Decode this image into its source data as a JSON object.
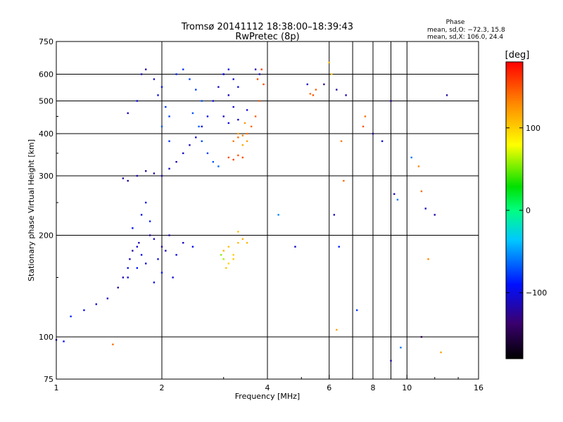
{
  "chart_data": {
    "type": "scatter",
    "title": "Tromsø 20141112 18:38:00–18:39:43",
    "subtitle": "RwPretec (8p)",
    "phase_info": {
      "heading": "Phase",
      "line_o": "mean, sd,O: −72.3, 15.8",
      "line_x": "mean, sd,X: 106.0, 24.4"
    },
    "xlabel": "Frequency [MHz]",
    "ylabel": "Stationary phase Virtual Height [km]",
    "x_scale": "log",
    "y_scale": "log",
    "xlim": [
      1,
      16
    ],
    "ylim": [
      75,
      750
    ],
    "x_ticks": [
      1,
      2,
      4,
      6,
      8,
      10,
      16
    ],
    "y_ticks": [
      75,
      100,
      200,
      300,
      400,
      500,
      600,
      750
    ],
    "grid": true,
    "gridlines_x": [
      2,
      4,
      6,
      7,
      8,
      9,
      10
    ],
    "gridlines_y": [
      100,
      200,
      300,
      400,
      500,
      600
    ],
    "colorbar": {
      "label": "[deg]",
      "range": [
        -180,
        180
      ],
      "ticks": [
        100,
        0,
        -100
      ]
    },
    "series": [
      {
        "points": [
          [
            1.0,
            98,
            -110
          ],
          [
            1.05,
            97,
            -90
          ],
          [
            1.1,
            115,
            -85
          ],
          [
            1.2,
            120,
            -95
          ],
          [
            1.3,
            125,
            -105
          ],
          [
            1.4,
            130,
            -110
          ],
          [
            1.45,
            95,
            140
          ],
          [
            1.5,
            140,
            -120
          ],
          [
            1.55,
            150,
            -115
          ],
          [
            1.6,
            160,
            -100
          ],
          [
            1.62,
            170,
            -110
          ],
          [
            1.65,
            180,
            -120
          ],
          [
            1.7,
            185,
            -105
          ],
          [
            1.72,
            190,
            -115
          ],
          [
            1.75,
            175,
            -95
          ],
          [
            1.8,
            165,
            -100
          ],
          [
            1.85,
            200,
            -120
          ],
          [
            1.9,
            195,
            -110
          ],
          [
            1.95,
            170,
            -105
          ],
          [
            2.0,
            185,
            -118
          ],
          [
            2.05,
            180,
            -112
          ],
          [
            2.1,
            200,
            -120
          ],
          [
            2.2,
            175,
            -100
          ],
          [
            2.3,
            190,
            -110
          ],
          [
            2.45,
            185,
            -95
          ],
          [
            1.65,
            210,
            -90
          ],
          [
            1.75,
            230,
            -100
          ],
          [
            1.8,
            250,
            -95
          ],
          [
            1.85,
            220,
            -85
          ],
          [
            1.7,
            160,
            -90
          ],
          [
            1.6,
            150,
            -100
          ],
          [
            1.9,
            145,
            -95
          ],
          [
            2.0,
            155,
            -90
          ],
          [
            2.15,
            150,
            -100
          ],
          [
            1.55,
            295,
            -120
          ],
          [
            1.6,
            290,
            -125
          ],
          [
            1.7,
            300,
            -118
          ],
          [
            1.8,
            310,
            -122
          ],
          [
            1.9,
            305,
            -115
          ],
          [
            2.0,
            300,
            -120
          ],
          [
            2.1,
            315,
            -110
          ],
          [
            2.2,
            330,
            -115
          ],
          [
            2.3,
            350,
            -108
          ],
          [
            2.4,
            370,
            -112
          ],
          [
            2.5,
            390,
            -105
          ],
          [
            2.6,
            420,
            -100
          ],
          [
            2.7,
            450,
            -95
          ],
          [
            2.8,
            500,
            -100
          ],
          [
            2.9,
            550,
            -110
          ],
          [
            3.0,
            600,
            -115
          ],
          [
            1.6,
            460,
            -110
          ],
          [
            1.7,
            500,
            -100
          ],
          [
            1.75,
            600,
            -110
          ],
          [
            1.8,
            620,
            -115
          ],
          [
            1.9,
            580,
            -105
          ],
          [
            2.0,
            550,
            -95
          ],
          [
            1.95,
            520,
            -100
          ],
          [
            2.05,
            480,
            -80
          ],
          [
            2.1,
            450,
            -75
          ],
          [
            2.0,
            420,
            -70
          ],
          [
            2.1,
            380,
            -80
          ],
          [
            2.2,
            600,
            -85
          ],
          [
            2.3,
            620,
            -80
          ],
          [
            2.4,
            580,
            -75
          ],
          [
            2.5,
            540,
            -78
          ],
          [
            2.6,
            500,
            -72
          ],
          [
            2.45,
            460,
            -70
          ],
          [
            2.55,
            420,
            -68
          ],
          [
            2.6,
            380,
            -72
          ],
          [
            2.7,
            350,
            -75
          ],
          [
            2.8,
            330,
            -70
          ],
          [
            2.9,
            320,
            -65
          ],
          [
            3.0,
            600,
            -95
          ],
          [
            3.1,
            620,
            -100
          ],
          [
            3.2,
            580,
            -105
          ],
          [
            3.3,
            550,
            -100
          ],
          [
            3.1,
            520,
            -110
          ],
          [
            3.2,
            480,
            -108
          ],
          [
            3.0,
            450,
            -112
          ],
          [
            3.1,
            430,
            -100
          ],
          [
            3.3,
            440,
            -110
          ],
          [
            3.5,
            470,
            -105
          ],
          [
            3.7,
            620,
            -115
          ],
          [
            3.8,
            600,
            -110
          ],
          [
            3.1,
            340,
            150
          ],
          [
            3.2,
            335,
            155
          ],
          [
            3.3,
            345,
            148
          ],
          [
            3.4,
            340,
            152
          ],
          [
            3.2,
            380,
            135
          ],
          [
            3.3,
            390,
            140
          ],
          [
            3.4,
            395,
            130
          ],
          [
            3.5,
            400,
            138
          ],
          [
            3.6,
            420,
            142
          ],
          [
            3.7,
            450,
            145
          ],
          [
            3.8,
            500,
            148
          ],
          [
            3.9,
            560,
            150
          ],
          [
            3.85,
            620,
            155
          ],
          [
            3.75,
            580,
            152
          ],
          [
            3.4,
            370,
            115
          ],
          [
            3.5,
            380,
            120
          ],
          [
            3.3,
            400,
            118
          ],
          [
            3.45,
            430,
            125
          ],
          [
            3.0,
            180,
            110
          ],
          [
            3.1,
            185,
            105
          ],
          [
            3.2,
            175,
            100
          ],
          [
            3.3,
            190,
            108
          ],
          [
            3.4,
            195,
            112
          ],
          [
            3.2,
            170,
            102
          ],
          [
            3.1,
            165,
            98
          ],
          [
            3.0,
            170,
            60
          ],
          [
            2.95,
            175,
            55
          ],
          [
            3.05,
            160,
            104
          ],
          [
            3.5,
            190,
            110
          ],
          [
            3.3,
            205,
            105
          ],
          [
            4.3,
            230,
            -55
          ],
          [
            4.8,
            185,
            -110
          ],
          [
            5.3,
            525,
            140
          ],
          [
            5.4,
            520,
            150
          ],
          [
            5.5,
            540,
            145
          ],
          [
            5.2,
            560,
            -110
          ],
          [
            5.8,
            560,
            -130
          ],
          [
            6.0,
            650,
            110
          ],
          [
            6.1,
            600,
            100
          ],
          [
            6.3,
            540,
            -120
          ],
          [
            6.5,
            380,
            135
          ],
          [
            6.6,
            290,
            140
          ],
          [
            6.7,
            520,
            -115
          ],
          [
            6.2,
            230,
            -110
          ],
          [
            6.4,
            185,
            -85
          ],
          [
            6.3,
            105,
            115
          ],
          [
            7.2,
            120,
            -80
          ],
          [
            7.6,
            450,
            140
          ],
          [
            7.5,
            420,
            150
          ],
          [
            8.0,
            400,
            -125
          ],
          [
            8.5,
            380,
            -100
          ],
          [
            9.0,
            500,
            -130
          ],
          [
            9.2,
            265,
            -110
          ],
          [
            9.4,
            255,
            -60
          ],
          [
            9.0,
            85,
            -120
          ],
          [
            9.6,
            93,
            -60
          ],
          [
            10.3,
            340,
            -60
          ],
          [
            10.8,
            320,
            130
          ],
          [
            11.0,
            270,
            140
          ],
          [
            11.3,
            240,
            -110
          ],
          [
            12.0,
            230,
            -120
          ],
          [
            13.0,
            520,
            -120
          ],
          [
            11.0,
            100,
            -150
          ],
          [
            11.5,
            170,
            130
          ],
          [
            12.5,
            90,
            120
          ]
        ]
      }
    ]
  }
}
